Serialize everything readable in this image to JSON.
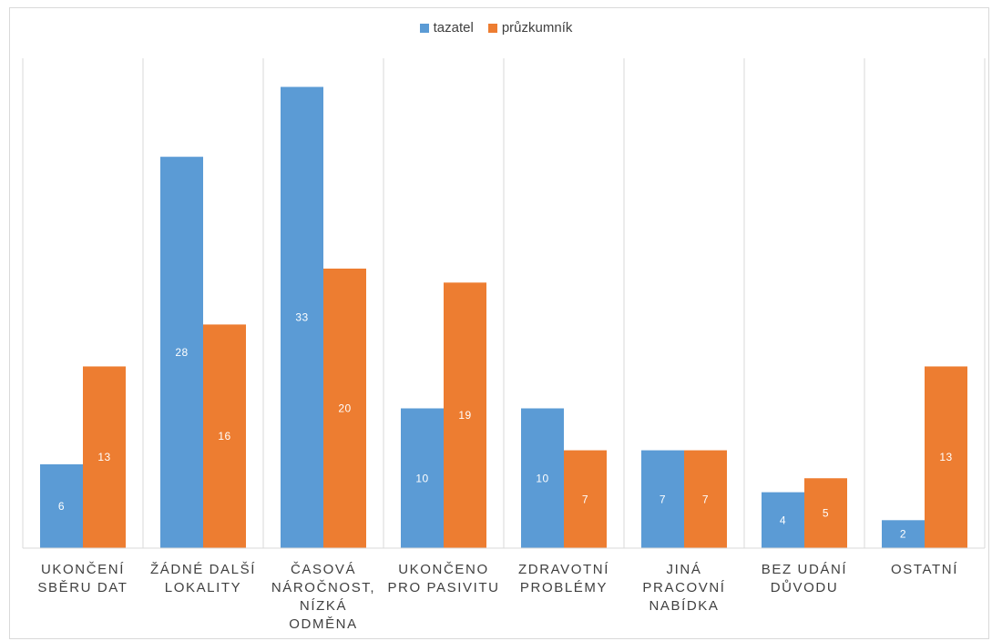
{
  "chart_data": {
    "type": "bar",
    "categories": [
      [
        "UKONČENÍ",
        "SBĚRU DAT"
      ],
      [
        "ŽÁDNÉ DALŠÍ",
        "LOKALITY"
      ],
      [
        "ČASOVÁ",
        "NÁROČNOST,",
        "NÍZKÁ",
        "ODMĚNA"
      ],
      [
        "UKONČENO",
        "PRO PASIVITU"
      ],
      [
        "ZDRAVOTNÍ",
        "PROBLÉMY"
      ],
      [
        "JINÁ",
        "PRACOVNÍ",
        "NABÍDKA"
      ],
      [
        "BEZ UDÁNÍ",
        "DŮVODU"
      ],
      [
        "OSTATNÍ"
      ]
    ],
    "series": [
      {
        "name": "tazatel",
        "color": "#5b9bd5",
        "values": [
          6,
          28,
          33,
          10,
          10,
          7,
          4,
          2
        ]
      },
      {
        "name": "průzkumník",
        "color": "#ed7d31",
        "values": [
          13,
          16,
          20,
          19,
          7,
          7,
          5,
          13
        ]
      }
    ],
    "bar_heights_scaled": [
      [
        6,
        28,
        33,
        10,
        10,
        7,
        4,
        2
      ],
      [
        13,
        16,
        20,
        19,
        7,
        7,
        5,
        13
      ]
    ],
    "grid": true,
    "legend_position": "top-center"
  }
}
